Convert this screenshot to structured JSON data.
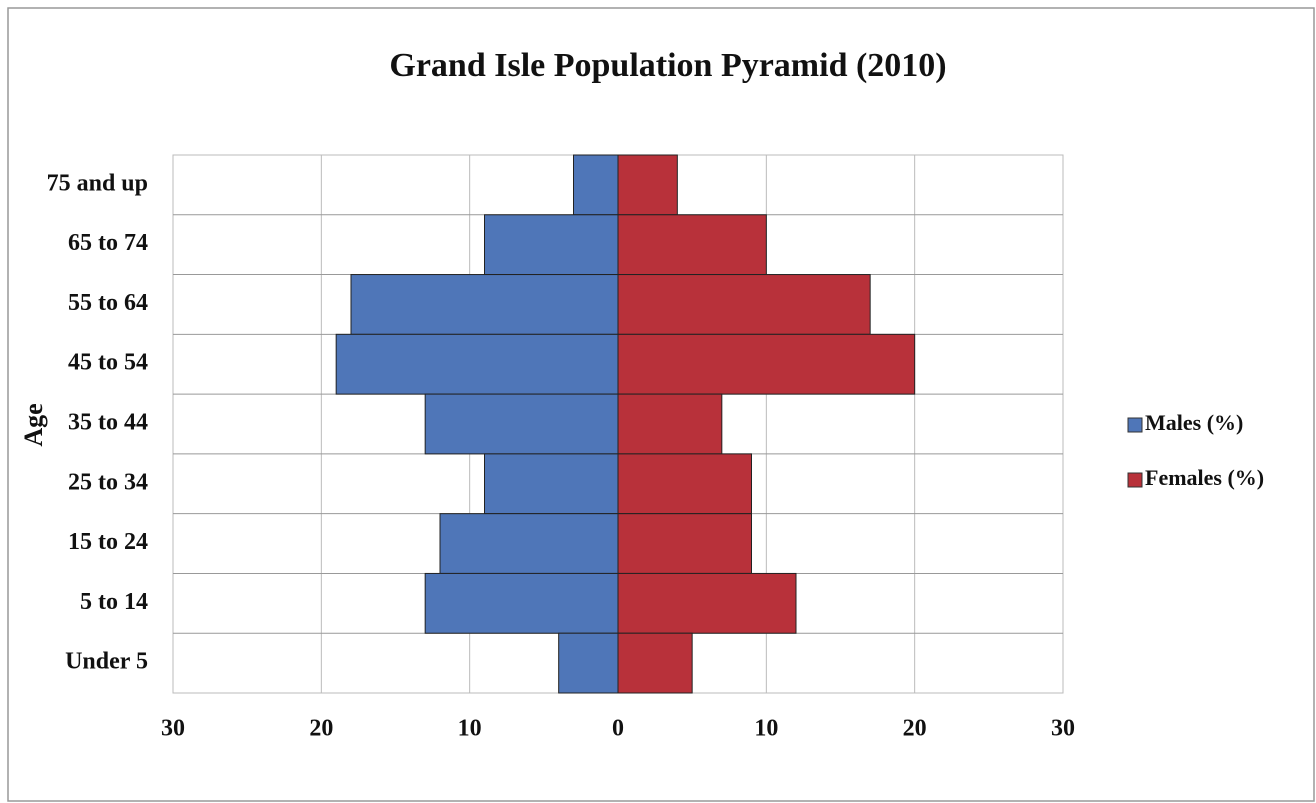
{
  "chart_data": {
    "type": "bar",
    "orientation": "horizontal",
    "title": "Grand Isle Population Pyramid (2010)",
    "y_label": "Age",
    "categories": [
      "75 and up",
      "65 to 74",
      "55 to 64",
      "45 to 54",
      "35 to 44",
      "25 to 34",
      "15 to 24",
      "5 to 14",
      "Under 5"
    ],
    "series": [
      {
        "name": "Males (%)",
        "color": "#4f76b8",
        "values": [
          -3,
          -9,
          -18,
          -19,
          -13,
          -9,
          -12,
          -13,
          -4
        ]
      },
      {
        "name": "Females (%)",
        "color": "#b8313a",
        "values": [
          4,
          10,
          17,
          20,
          7,
          9,
          9,
          12,
          5
        ]
      }
    ],
    "xlim": [
      -30,
      30
    ],
    "xticks": [
      {
        "value": -30,
        "label": "30"
      },
      {
        "value": -20,
        "label": "20"
      },
      {
        "value": -10,
        "label": "10"
      },
      0,
      10,
      20,
      30
    ],
    "grid": true,
    "legend": "right"
  }
}
